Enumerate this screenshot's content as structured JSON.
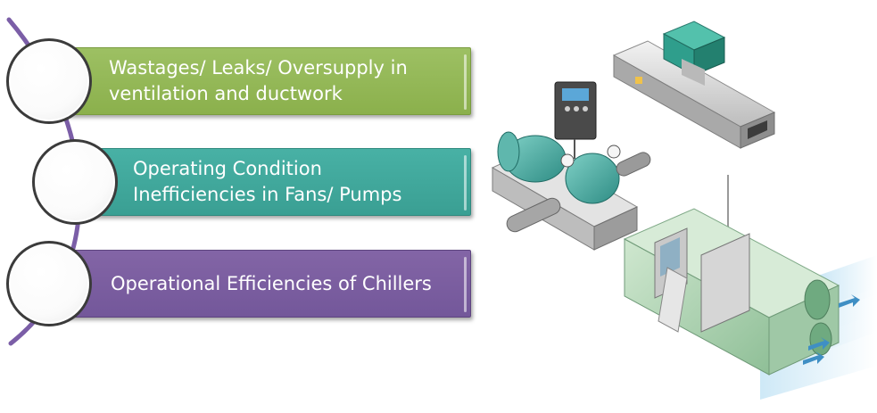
{
  "items": [
    {
      "label": "Wastages/ Leaks/ Oversupply in\nventilation and ductwork",
      "color": "#8bb04c"
    },
    {
      "label": "Operating Condition\nInefficiencies in Fans/ Pumps",
      "color": "#3a9f93"
    },
    {
      "label": "Operational Efficiencies of Chillers",
      "color": "#73579a"
    }
  ],
  "accent_colors": {
    "arc": "#7b5ea7"
  },
  "illustrations": [
    "duct-fan-unit",
    "pump-motor-with-vfd",
    "chiller-unit"
  ]
}
